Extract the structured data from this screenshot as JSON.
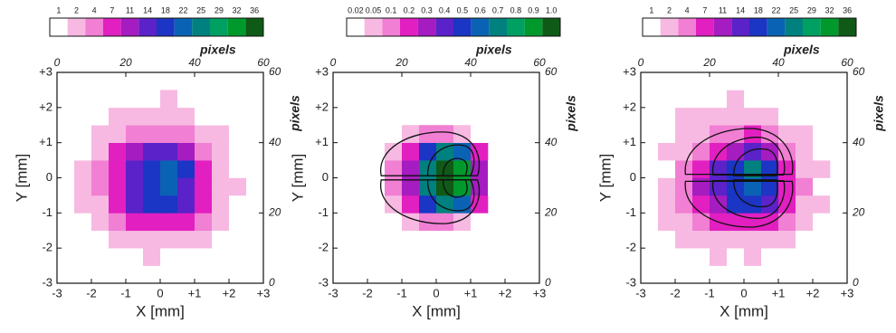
{
  "chart_data": [
    {
      "type": "heatmap",
      "xlabel": "X [mm]",
      "ylabel": "Y [mm]",
      "x2label": "pixels",
      "y2label": "pixels",
      "xlim": [
        -3,
        3
      ],
      "ylim": [
        -3,
        3
      ],
      "xticks": [
        -3,
        -2,
        -1,
        0,
        {
          "value": 1,
          "label": "+1"
        },
        {
          "value": 2,
          "label": "+2"
        },
        {
          "value": 3,
          "label": "+3"
        }
      ],
      "yticks": [
        -3,
        -2,
        -1,
        0,
        {
          "value": 1,
          "label": "+1"
        },
        {
          "value": 2,
          "label": "+2"
        },
        {
          "value": 3,
          "label": "+3"
        }
      ],
      "x2lim": [
        0,
        60
      ],
      "x2ticks": [
        0,
        20,
        40,
        60
      ],
      "y2lim": [
        0,
        60
      ],
      "y2ticks": [
        0,
        20,
        40,
        60
      ],
      "colorbar": {
        "ticks": [
          1,
          2,
          4,
          7,
          11,
          14,
          18,
          22,
          25,
          29,
          32,
          36
        ],
        "colors": [
          "#ffffff",
          "#f7b9e2",
          "#f17fd3",
          "#e21fc0",
          "#a51cc0",
          "#5a22c8",
          "#1b35c4",
          "#0a62b4",
          "#00817f",
          "#00a062",
          "#009a2c",
          "#0f5a16"
        ]
      },
      "xbins": [
        -3,
        -2.5,
        -2,
        -1.5,
        -1,
        -0.5,
        0,
        0.5,
        1,
        1.5,
        2,
        2.5,
        3
      ],
      "ybins": [
        -3,
        -2.5,
        -2,
        -1.5,
        -1,
        -0.5,
        0,
        0.5,
        1,
        1.5,
        2,
        2.5,
        3
      ],
      "z": [
        [
          0,
          1,
          0,
          1,
          0,
          1,
          1,
          0,
          1,
          0,
          1,
          0
        ],
        [
          1,
          0,
          1,
          1,
          1,
          2,
          1,
          1,
          1,
          0,
          0,
          1
        ],
        [
          0,
          1,
          1,
          2,
          2,
          3,
          3,
          2,
          2,
          1,
          1,
          0
        ],
        [
          1,
          1,
          2,
          4,
          7,
          9,
          9,
          7,
          4,
          2,
          1,
          1
        ],
        [
          1,
          2,
          3,
          9,
          14,
          18,
          20,
          16,
          8,
          3,
          1,
          0
        ],
        [
          1,
          2,
          4,
          10,
          16,
          20,
          22,
          17,
          9,
          3,
          2,
          1
        ],
        [
          1,
          2,
          4,
          10,
          15,
          20,
          24,
          18,
          8,
          3,
          1,
          1
        ],
        [
          1,
          1,
          3,
          7,
          11,
          14,
          16,
          12,
          6,
          2,
          1,
          0
        ],
        [
          0,
          1,
          2,
          3,
          4,
          6,
          6,
          4,
          3,
          2,
          1,
          1
        ],
        [
          1,
          1,
          1,
          2,
          2,
          3,
          2,
          2,
          1,
          1,
          0,
          1
        ],
        [
          0,
          1,
          1,
          1,
          1,
          1,
          2,
          1,
          1,
          0,
          1,
          0
        ],
        [
          1,
          0,
          1,
          0,
          1,
          1,
          0,
          1,
          0,
          1,
          0,
          1
        ]
      ]
    },
    {
      "type": "heatmap",
      "xlabel": "X [mm]",
      "ylabel": "Y [mm]",
      "x2label": "pixels",
      "y2label": "pixels",
      "xlim": [
        -3,
        3
      ],
      "ylim": [
        -3,
        3
      ],
      "xticks": [
        -3,
        -2,
        -1,
        0,
        {
          "value": 1,
          "label": "+1"
        },
        {
          "value": 2,
          "label": "+2"
        },
        {
          "value": 3,
          "label": "+3"
        }
      ],
      "yticks": [
        -3,
        -2,
        -1,
        0,
        {
          "value": 1,
          "label": "+1"
        },
        {
          "value": 2,
          "label": "+2"
        },
        {
          "value": 3,
          "label": "+3"
        }
      ],
      "x2lim": [
        0,
        60
      ],
      "x2ticks": [
        0,
        20,
        40,
        60
      ],
      "y2lim": [
        0,
        60
      ],
      "y2ticks": [
        0,
        20,
        40,
        60
      ],
      "colorbar": {
        "ticks": [
          0.02,
          0.05,
          0.1,
          0.2,
          0.3,
          0.4,
          0.5,
          0.6,
          0.7,
          0.8,
          0.9,
          {
            "value": 1,
            "label": "1.0"
          }
        ],
        "colors": [
          "#ffffff",
          "#f7b9e2",
          "#f17fd3",
          "#e21fc0",
          "#a51cc0",
          "#5a22c8",
          "#1b35c4",
          "#0a62b4",
          "#00817f",
          "#00a062",
          "#009a2c",
          "#0f5a16"
        ]
      },
      "xbins": [
        -3,
        -2.5,
        -2,
        -1.5,
        -1,
        -0.5,
        0,
        0.5,
        1,
        1.5,
        2,
        2.5,
        3
      ],
      "ybins": [
        -3,
        -2.5,
        -2,
        -1.5,
        -1,
        -0.5,
        0,
        0.5,
        1,
        1.5,
        2,
        2.5,
        3
      ],
      "z": [
        [
          0,
          0,
          0,
          0,
          0,
          0,
          0,
          0,
          0,
          0,
          0,
          0
        ],
        [
          0,
          0,
          0,
          0,
          0,
          0,
          0,
          0,
          0,
          0,
          0,
          0
        ],
        [
          0,
          0,
          0,
          0,
          0,
          0,
          0,
          0,
          0,
          0,
          0,
          0
        ],
        [
          0,
          0,
          0,
          0.02,
          0.05,
          0.1,
          0.1,
          0.05,
          0.02,
          0,
          0,
          0
        ],
        [
          0,
          0,
          0,
          0.05,
          0.2,
          0.5,
          0.7,
          0.6,
          0.2,
          0,
          0,
          0
        ],
        [
          0,
          0,
          0,
          0.1,
          0.3,
          0.7,
          1.0,
          0.9,
          0.3,
          0.02,
          0,
          0
        ],
        [
          0,
          0,
          0,
          0.1,
          0.3,
          0.7,
          1.0,
          0.9,
          0.3,
          0.02,
          0,
          0
        ],
        [
          0,
          0,
          0,
          0.05,
          0.2,
          0.5,
          0.7,
          0.6,
          0.2,
          0,
          0,
          0
        ],
        [
          0,
          0,
          0,
          0.02,
          0.05,
          0.1,
          0.1,
          0.05,
          0.02,
          0,
          0,
          0
        ],
        [
          0,
          0,
          0,
          0,
          0,
          0,
          0,
          0,
          0,
          0,
          0,
          0
        ],
        [
          0,
          0,
          0,
          0,
          0,
          0,
          0,
          0,
          0,
          0,
          0,
          0
        ],
        [
          0,
          0,
          0,
          0,
          0,
          0,
          0,
          0,
          0,
          0,
          0,
          0
        ]
      ]
    },
    {
      "type": "heatmap",
      "xlabel": "X [mm]",
      "ylabel": "Y [mm]",
      "x2label": "pixels",
      "y2label": "pixels",
      "xlim": [
        -3,
        3
      ],
      "ylim": [
        -3,
        3
      ],
      "xticks": [
        -3,
        -2,
        -1,
        0,
        {
          "value": 1,
          "label": "+1"
        },
        {
          "value": 2,
          "label": "+2"
        },
        {
          "value": 3,
          "label": "+3"
        }
      ],
      "yticks": [
        -3,
        -2,
        -1,
        0,
        {
          "value": 1,
          "label": "+1"
        },
        {
          "value": 2,
          "label": "+2"
        },
        {
          "value": 3,
          "label": "+3"
        }
      ],
      "x2lim": [
        0,
        60
      ],
      "x2ticks": [
        0,
        20,
        40,
        60
      ],
      "y2lim": [
        0,
        60
      ],
      "y2ticks": [
        0,
        20,
        40,
        60
      ],
      "colorbar": {
        "ticks": [
          1,
          2,
          4,
          7,
          11,
          14,
          18,
          22,
          25,
          29,
          32,
          36
        ],
        "colors": [
          "#ffffff",
          "#f7b9e2",
          "#f17fd3",
          "#e21fc0",
          "#a51cc0",
          "#5a22c8",
          "#1b35c4",
          "#0a62b4",
          "#00817f",
          "#00a062",
          "#009a2c",
          "#0f5a16"
        ]
      },
      "xbins": [
        -3,
        -2.5,
        -2,
        -1.5,
        -1,
        -0.5,
        0,
        0.5,
        1,
        1.5,
        2,
        2.5,
        3
      ],
      "ybins": [
        -3,
        -2.5,
        -2,
        -1.5,
        -1,
        -0.5,
        0,
        0.5,
        1,
        1.5,
        2,
        2.5,
        3
      ],
      "z": [
        [
          1,
          0,
          1,
          0,
          1,
          0,
          1,
          1,
          0,
          1,
          0,
          1
        ],
        [
          0,
          1,
          1,
          1,
          2,
          1,
          2,
          1,
          1,
          1,
          1,
          0
        ],
        [
          1,
          1,
          2,
          2,
          3,
          3,
          2,
          3,
          2,
          1,
          0,
          1
        ],
        [
          1,
          2,
          2,
          5,
          8,
          9,
          10,
          7,
          4,
          2,
          1,
          0
        ],
        [
          0,
          2,
          4,
          9,
          13,
          19,
          21,
          15,
          8,
          3,
          2,
          1
        ],
        [
          1,
          2,
          4,
          11,
          17,
          21,
          23,
          18,
          9,
          4,
          1,
          1
        ],
        [
          1,
          1,
          4,
          9,
          16,
          21,
          25,
          19,
          9,
          3,
          2,
          0
        ],
        [
          1,
          2,
          3,
          6,
          10,
          13,
          17,
          11,
          6,
          2,
          1,
          1
        ],
        [
          1,
          1,
          2,
          3,
          5,
          6,
          7,
          4,
          2,
          2,
          1,
          0
        ],
        [
          0,
          1,
          2,
          2,
          3,
          2,
          3,
          2,
          1,
          1,
          1,
          1
        ],
        [
          1,
          0,
          1,
          1,
          1,
          2,
          1,
          1,
          1,
          1,
          0,
          0
        ],
        [
          0,
          1,
          0,
          1,
          0,
          1,
          1,
          0,
          1,
          0,
          1,
          0
        ]
      ]
    }
  ]
}
